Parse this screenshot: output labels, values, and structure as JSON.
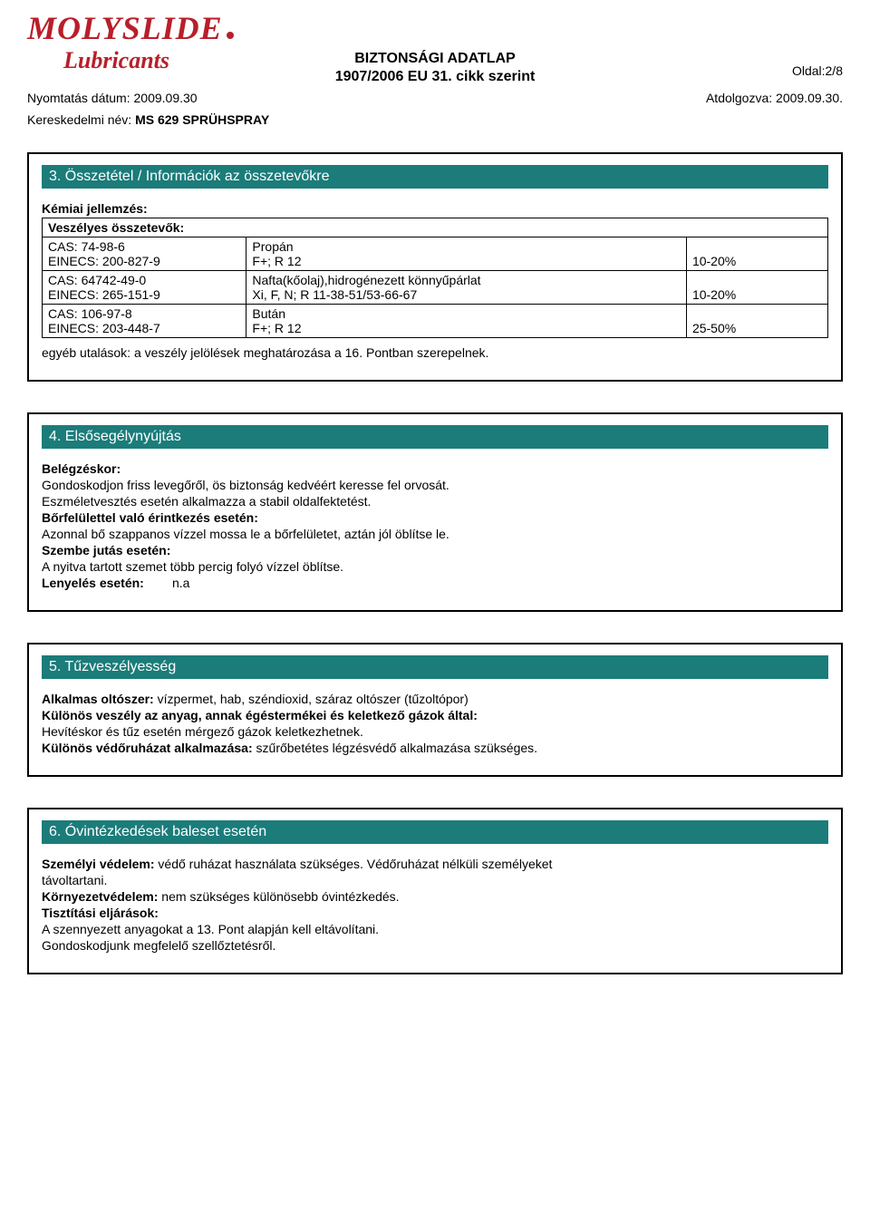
{
  "logo": {
    "main": "MOLYSLIDE",
    "sub": "Lubricants"
  },
  "header": {
    "title": "BIZTONSÁGI ADATLAP",
    "subtitle": "1907/2006 EU 31. cikk szerint",
    "print_date_label": "Nyomtatás dátum:",
    "print_date_value": "2009.09.30",
    "revised_label": "Atdolgozva:",
    "revised_value": "2009.09.30.",
    "page_label": "Oldal:2/8",
    "product_label": "Kereskedelmi név:",
    "product_value": "MS 629 SPRÜHSPRAY"
  },
  "section3": {
    "title": "3. Összetétel / Információk az összetevőkre",
    "chem_label": "Kémiai jellemzés:",
    "hazard_label": "Veszélyes összetevők:",
    "rows": [
      {
        "id1": "CAS: 74-98-6",
        "id2": "EINECS: 200-827-9",
        "name1": "Propán",
        "name2": "F+; R 12",
        "pct": "10-20%"
      },
      {
        "id1": "CAS: 64742-49-0",
        "id2": "EINECS: 265-151-9",
        "name1": "Nafta(kőolaj),hidrogénezett könnyűpárlat",
        "name2": "Xi, F, N; R 11-38-51/53-66-67",
        "pct": "10-20%"
      },
      {
        "id1": "CAS: 106-97-8",
        "id2": "EINECS: 203-448-7",
        "name1": "Bután",
        "name2": "F+; R 12",
        "pct": "25-50%"
      }
    ],
    "note": "egyéb utalások: a veszély jelölések meghatározása a 16. Pontban szerepelnek."
  },
  "section4": {
    "title": "4. Elsősegélynyújtás",
    "inhale_label": "Belégzéskor:",
    "inhale_line1": "Gondoskodjon friss levegőről, ös biztonság kedvéért keresse fel orvosát.",
    "inhale_line2": "Eszméletvesztés esetén alkalmazza a stabil oldalfektetést.",
    "skin_label": "Bőrfelülettel való érintkezés esetén:",
    "skin_text": "Azonnal bő szappanos vízzel mossa le a bőrfelületet, aztán jól öblítse le.",
    "eye_label": "Szembe jutás esetén:",
    "eye_text": "A nyitva tartott szemet több percig folyó vízzel öblítse.",
    "swallow_label": "Lenyelés esetén:",
    "swallow_text": "n.a"
  },
  "section5": {
    "title": "5. Tűzveszélyesség",
    "ext_label": "Alkalmas oltószer:",
    "ext_text": "vízpermet, hab, széndioxid, száraz oltószer (tűzoltópor)",
    "danger_label": "Különös veszély az anyag, annak égéstermékei és keletkező gázok által:",
    "danger_text": "Hevítéskor és tűz esetén mérgező gázok keletkezhetnek.",
    "protect_label": "Különös védőruházat alkalmazása:",
    "protect_text": "szűrőbetétes légzésvédő alkalmazása szükséges."
  },
  "section6": {
    "title": "6. Óvintézkedések baleset esetén",
    "personal_label": "Személyi védelem:",
    "personal_text1": "védő ruházat használata szükséges. Védőruházat nélküli személyeket",
    "personal_text2": "távoltartani.",
    "env_label": "Környezetvédelem:",
    "env_text": "nem szükséges különösebb óvintézkedés.",
    "clean_label": "Tisztítási eljárások:",
    "clean_line1": "A szennyezett anyagokat  a 13.  Pont alapján kell eltávolítani.",
    "clean_line2": "Gondoskodjunk megfelelő szellőztetésről."
  }
}
